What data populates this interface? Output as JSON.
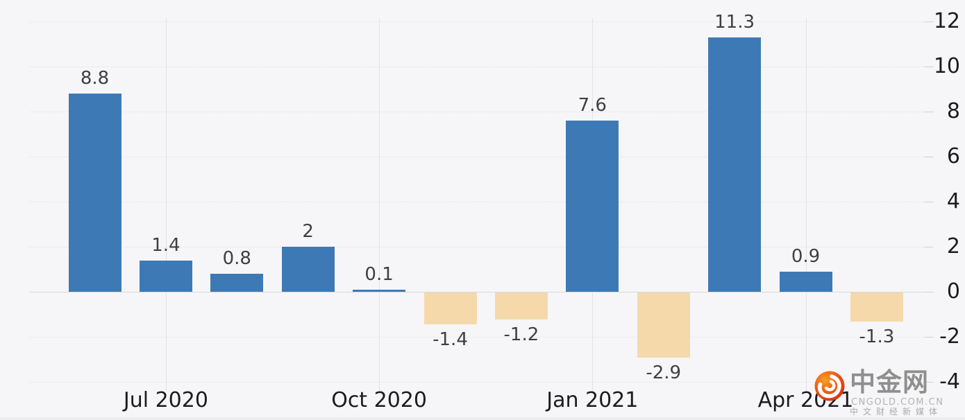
{
  "chart_data": {
    "type": "bar",
    "values": [
      8.8,
      1.4,
      0.8,
      2,
      0.1,
      -1.4,
      -1.2,
      7.6,
      -2.9,
      11.3,
      0.9,
      -1.3
    ],
    "value_labels": [
      "8.8",
      "1.4",
      "0.8",
      "2",
      "0.1",
      "-1.4",
      "-1.2",
      "7.6",
      "-2.9",
      "11.3",
      "0.9",
      "-1.3"
    ],
    "x_tick_labels": [
      "Jul 2020",
      "Oct 2020",
      "Jan 2021",
      "Apr 2021"
    ],
    "x_tick_bar_index": [
      1,
      4,
      7,
      10
    ],
    "y_ticks": [
      12,
      10,
      8,
      6,
      4,
      2,
      0,
      -2,
      -4
    ],
    "ylim": [
      -4,
      12
    ],
    "title": "",
    "xlabel": "",
    "ylabel": "",
    "grid": true,
    "legend": false,
    "positive_color": "#3d7ab5",
    "negative_color": "#f5d9ab",
    "background_color": "#f6f6f8"
  },
  "watermark": {
    "brand": "中金网",
    "site": "CNGOLD.COM.CN",
    "tagline": "中文财经新媒体",
    "icon_color_outer": "#e8380d",
    "icon_color_inner": "#f59a22"
  }
}
